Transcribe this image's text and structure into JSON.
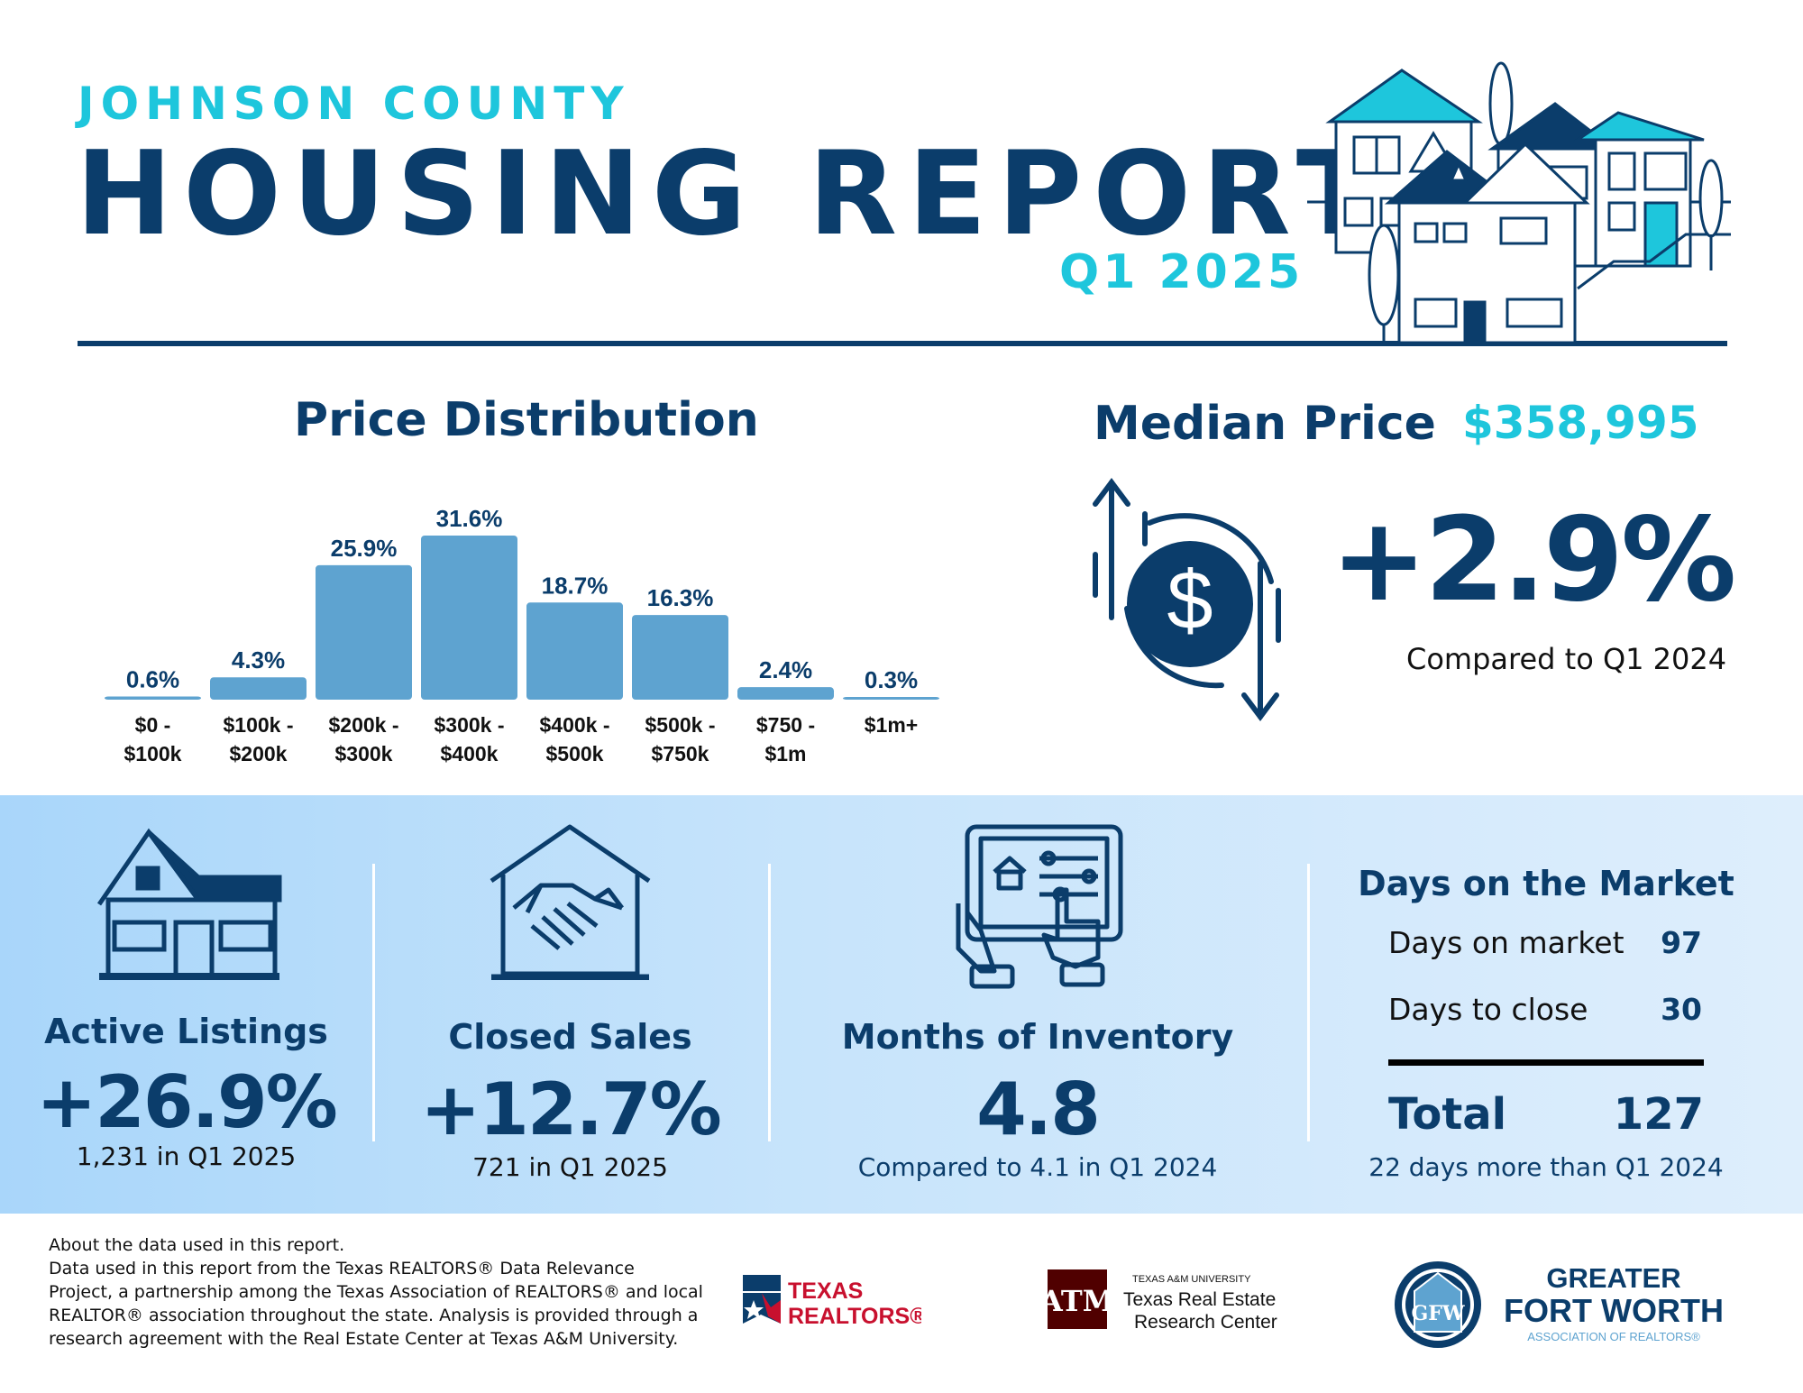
{
  "header": {
    "county": "JOHNSON COUNTY",
    "title": "HOUSING REPORT",
    "quarter": "Q1 2025"
  },
  "price_distribution": {
    "title": "Price Distribution"
  },
  "chart_data": {
    "type": "bar",
    "title": "Price Distribution",
    "categories": [
      [
        "$0 -",
        "$100k"
      ],
      [
        "$100k -",
        "$200k"
      ],
      [
        "$200k -",
        "$300k"
      ],
      [
        "$300k -",
        "$400k"
      ],
      [
        "$400k -",
        "$500k"
      ],
      [
        "$500k -",
        "$750k"
      ],
      [
        "$750 -",
        "$1m"
      ],
      [
        "$1m+",
        ""
      ]
    ],
    "values": [
      0.6,
      4.3,
      25.9,
      31.6,
      18.7,
      16.3,
      2.4,
      0.3
    ],
    "value_labels": [
      "0.6%",
      "4.3%",
      "25.9%",
      "31.6%",
      "18.7%",
      "16.3%",
      "2.4%",
      "0.3%"
    ],
    "ylim": [
      0,
      31.6
    ],
    "grid": false,
    "bar_color": "#5ea3d0",
    "label_color": "#0b3d6b"
  },
  "median_price": {
    "label": "Median Price",
    "value": "$358,995",
    "change": "+2.9%",
    "compare": "Compared to Q1 2024",
    "icon": "dollar-cycle-icon"
  },
  "stats": {
    "active_listings": {
      "icon": "house-icon",
      "title": "Active Listings",
      "value": "+26.9%",
      "sub": "1,231 in Q1 2025"
    },
    "closed_sales": {
      "icon": "handshake-house-icon",
      "title": "Closed Sales",
      "value": "+12.7%",
      "sub": "721 in Q1 2025"
    },
    "months_inventory": {
      "icon": "tablet-icon",
      "title": "Months of Inventory",
      "value": "4.8",
      "sub": "Compared to 4.1 in Q1 2024"
    },
    "days_on_market": {
      "title": "Days on the Market",
      "rows": [
        {
          "label": "Days on market",
          "value": "97"
        },
        {
          "label": "Days to close",
          "value": "30"
        }
      ],
      "total_label": "Total",
      "total_value": "127",
      "sub": "22 days more than Q1 2024"
    }
  },
  "footer": {
    "about_lines": [
      "About the data used in this report.",
      "Data used in this report from the Texas REALTORS® Data Relevance",
      "Project, a partnership among the Texas Association of REALTORS® and local",
      "REALTOR® association throughout the state. Analysis is provided through a",
      "research agreement with the Real Estate Center at Texas A&M University."
    ],
    "logos": {
      "texas_realtors": {
        "line1": "TEXAS",
        "line2": "REALTORS®"
      },
      "tamu": {
        "small": "TEXAS A&M UNIVERSITY",
        "line1": "Texas Real Estate",
        "line2": "Research Center"
      },
      "gfw": {
        "line1": "GREATER",
        "line2": "FORT WORTH",
        "line3": "ASSOCIATION OF REALTORS®"
      }
    }
  },
  "colors": {
    "navy": "#0b3d6b",
    "cyan": "#1ec6dc",
    "bar": "#5ea3d0",
    "texas_red": "#c8102e",
    "tamu_maroon": "#500000"
  }
}
